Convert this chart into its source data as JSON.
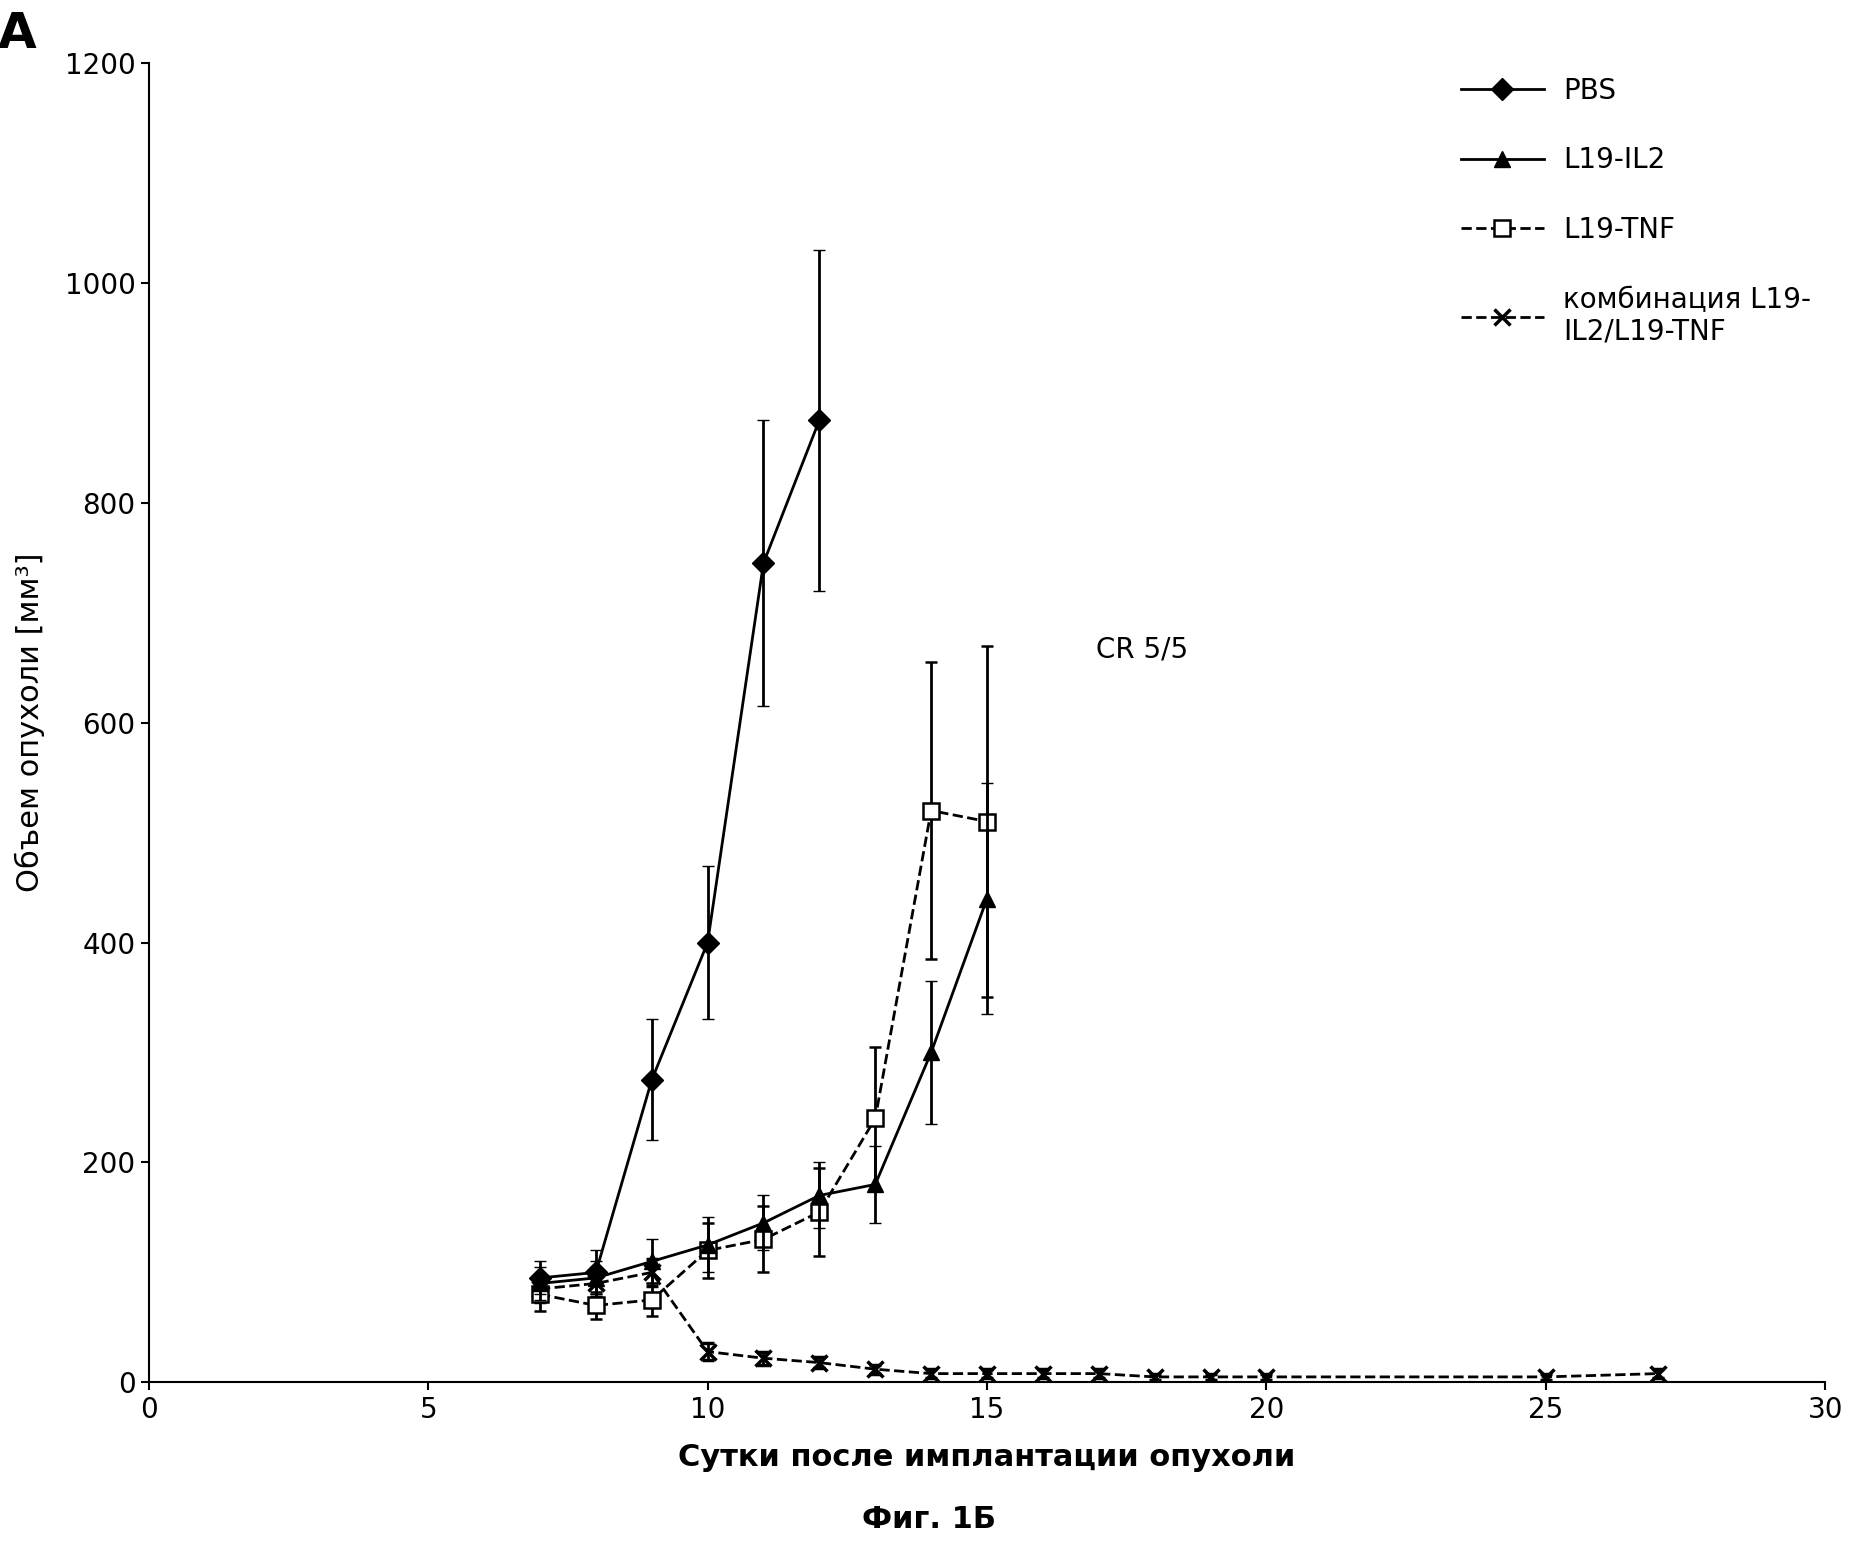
{
  "xlabel": "Сутки после имплантации опухоли",
  "ylabel": "Объем опухоли [мм³]",
  "caption": "Фиг. 1Б",
  "xlim": [
    0,
    30
  ],
  "ylim": [
    0,
    1200
  ],
  "xticks": [
    0,
    5,
    10,
    15,
    20,
    25,
    30
  ],
  "yticks": [
    0,
    200,
    400,
    600,
    800,
    1000,
    1200
  ],
  "pbs_x": [
    7,
    8,
    9,
    10,
    11,
    12
  ],
  "pbs_y": [
    95,
    100,
    275,
    400,
    745,
    875
  ],
  "pbs_yerr": [
    15,
    20,
    55,
    70,
    130,
    155
  ],
  "il2_x": [
    7,
    8,
    9,
    10,
    11,
    12,
    13,
    14,
    15
  ],
  "il2_y": [
    90,
    95,
    110,
    125,
    145,
    170,
    180,
    300,
    440
  ],
  "il2_yerr": [
    15,
    15,
    20,
    25,
    25,
    30,
    35,
    65,
    105
  ],
  "tnf_x": [
    7,
    8,
    9,
    10,
    11,
    12,
    13,
    14,
    15
  ],
  "tnf_y": [
    80,
    70,
    75,
    120,
    130,
    155,
    240,
    520,
    510
  ],
  "tnf_yerr": [
    15,
    12,
    15,
    25,
    30,
    40,
    65,
    135,
    160
  ],
  "combo_x": [
    7,
    8,
    9,
    10,
    11,
    12,
    13,
    14,
    15,
    16,
    17,
    18,
    19,
    20,
    25,
    27
  ],
  "combo_y": [
    85,
    90,
    100,
    28,
    22,
    18,
    12,
    8,
    8,
    8,
    8,
    5,
    5,
    5,
    5,
    8
  ],
  "combo_yerr": [
    12,
    12,
    12,
    8,
    6,
    5,
    4,
    4,
    4,
    4,
    4,
    3,
    3,
    3,
    3,
    4
  ],
  "cr_label": "CR 5/5",
  "combo_legend_label": "комбинация L19-\nIL2/L19-TNF",
  "pbs_label": "PBS",
  "il2_label": "L19-IL2",
  "tnf_label": "L19-TNF",
  "line_color": "#000000",
  "bg_color": "#ffffff",
  "lw": 2.0,
  "ms": 11,
  "capsize": 4,
  "legend_fontsize": 20,
  "tick_fontsize": 20,
  "label_fontsize": 22,
  "caption_fontsize": 22,
  "panel_label_fontsize": 36,
  "annotation_fontsize": 20
}
